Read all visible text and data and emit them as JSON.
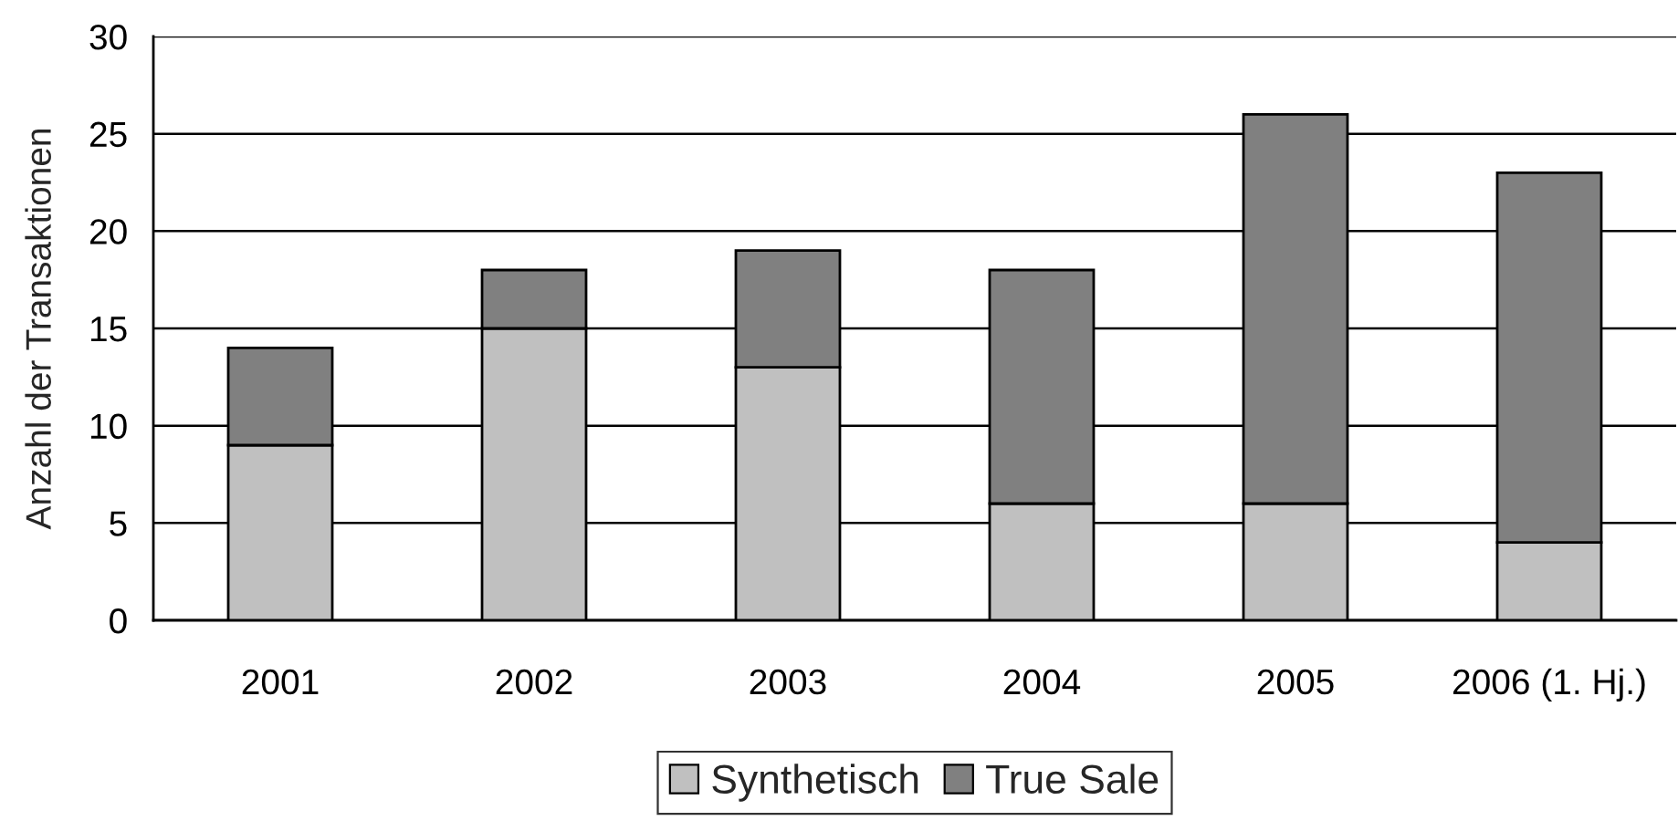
{
  "chart_data": {
    "type": "bar",
    "stacked": true,
    "ylabel": "Anzahl der Transaktionen",
    "categories": [
      "2001",
      "2002",
      "2003",
      "2004",
      "2005",
      "2006 (1. Hj.)"
    ],
    "series": [
      {
        "name": "Synthetisch",
        "color": "#c0c0c0",
        "values": [
          9,
          15,
          13,
          6,
          6,
          4
        ]
      },
      {
        "name": "True Sale",
        "color": "#808080",
        "values": [
          5,
          3,
          6,
          12,
          20,
          19
        ]
      }
    ],
    "ylim": [
      0,
      30
    ],
    "yticks": [
      0,
      5,
      10,
      15,
      20,
      25,
      30
    ],
    "grid": "y",
    "legend": "bottom"
  }
}
